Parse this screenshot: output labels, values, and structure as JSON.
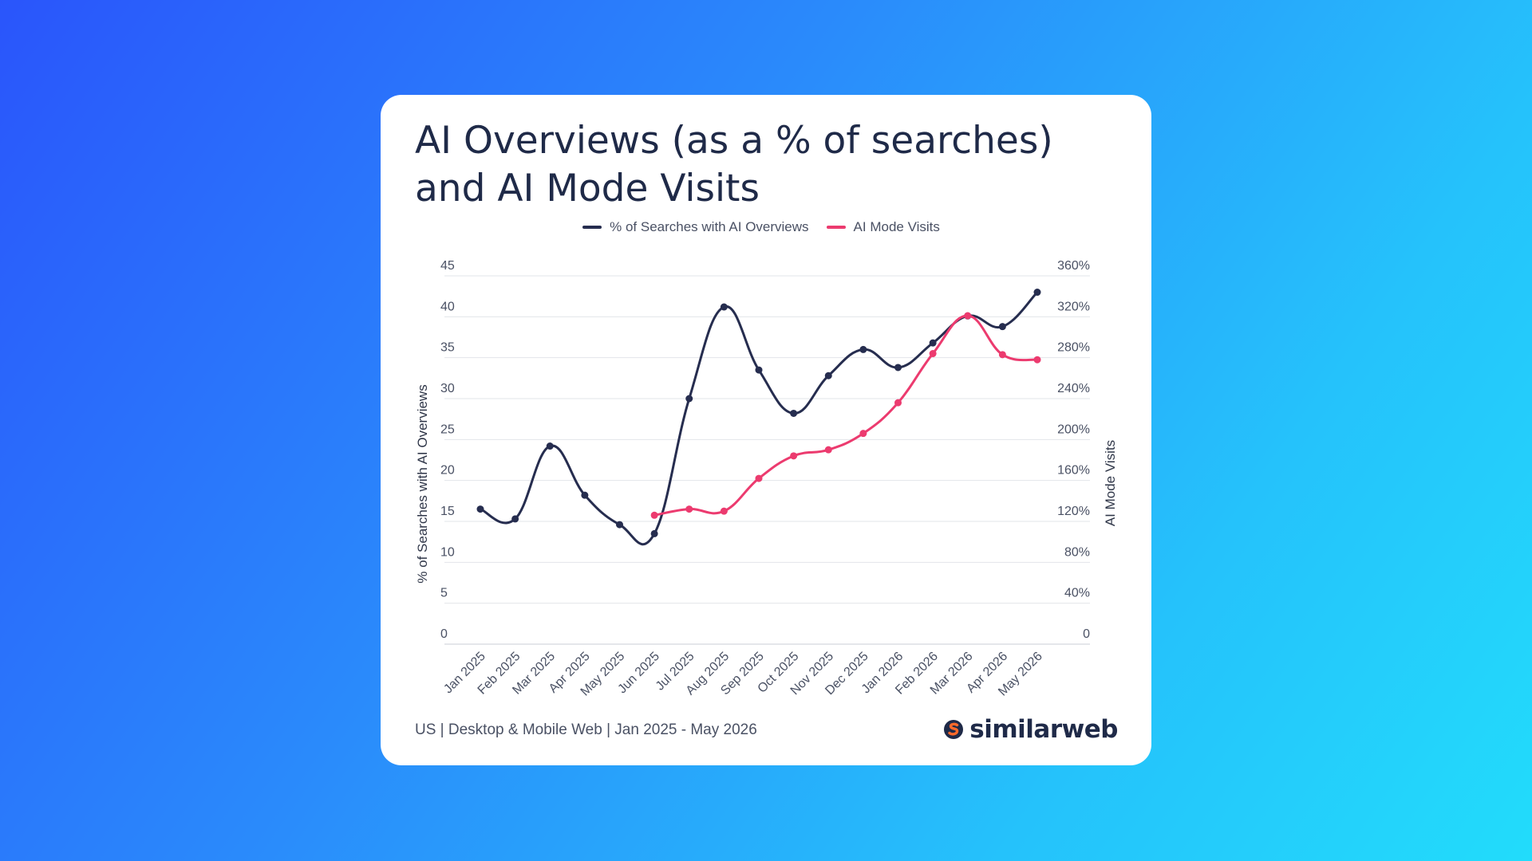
{
  "title": "AI Overviews (as a % of searches) and AI Mode Visits",
  "footer": "US | Desktop & Mobile Web | Jan 2025 - May 2026",
  "brand": {
    "name": "similarweb",
    "logo_icon": "similarweb-logo-icon",
    "logo_colors": [
      "#1f2a48",
      "#ff6a2b"
    ]
  },
  "colors": {
    "searches_series": "#262d4f",
    "ai_mode_series": "#ec3b6f",
    "text": "#4a5164",
    "grid": "#e2e4ea"
  },
  "chart_data": {
    "type": "line",
    "categories": [
      "Jan 2025",
      "Feb 2025",
      "Mar 2025",
      "Apr 2025",
      "May 2025",
      "Jun 2025",
      "Jul 2025",
      "Aug 2025",
      "Sep 2025",
      "Oct 2025",
      "Nov 2025",
      "Dec 2025",
      "Jan 2026",
      "Feb 2026",
      "Mar 2026",
      "Apr 2026",
      "May 2026"
    ],
    "ylabel": "% of Searches with AI Overviews",
    "y2label": "AI Mode Visits",
    "ylim": [
      0,
      45
    ],
    "y2lim": [
      0,
      360
    ],
    "yticks": [
      "0",
      "5",
      "10",
      "15",
      "20",
      "25",
      "30",
      "35",
      "40",
      "45"
    ],
    "y2ticks": [
      "0",
      "40%",
      "80%",
      "120%",
      "160%",
      "200%",
      "240%",
      "280%",
      "320%",
      "360%"
    ],
    "legend_position": "top-center",
    "grid": true,
    "series": [
      {
        "name": "% of Searches with AI Overviews",
        "axis": "left",
        "values": [
          16.5,
          15.3,
          24.2,
          18.2,
          14.6,
          13.5,
          30.0,
          41.2,
          33.5,
          28.2,
          32.8,
          36.0,
          33.8,
          36.8,
          40.1,
          38.8,
          43.0
        ]
      },
      {
        "name": "AI Mode Visits",
        "axis": "right",
        "values": [
          null,
          null,
          null,
          null,
          null,
          126,
          132,
          130,
          162,
          184,
          190,
          206,
          236,
          284,
          321,
          283,
          278
        ]
      }
    ]
  }
}
